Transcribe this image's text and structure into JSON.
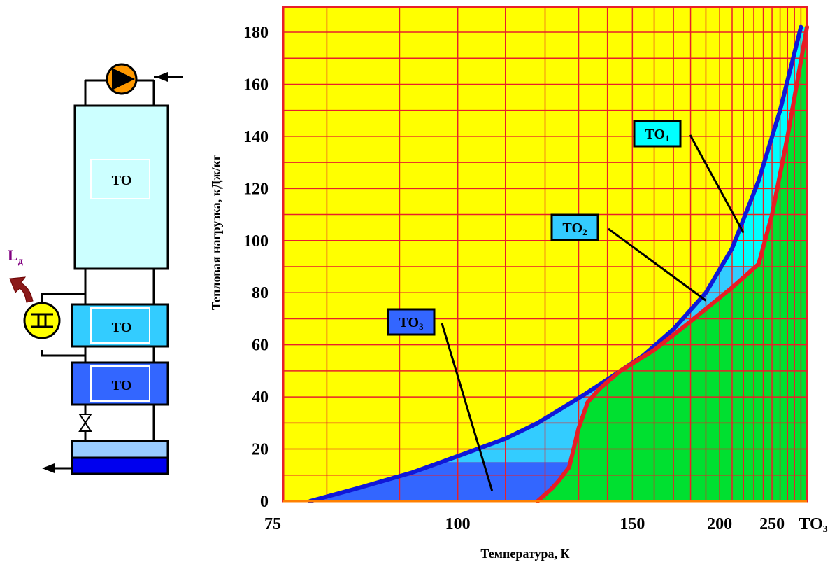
{
  "colors": {
    "background": "#ffff00",
    "grid": "#e8202a",
    "hot_curve": "#1018d8",
    "cold_curve": "#e81c24",
    "region_to1": "#00ffff",
    "region_to2": "#33ccff",
    "region_to3": "#3366ff",
    "region_cold": "#00e030",
    "hx1_fill": "#ccffff",
    "hx2_fill": "#33ccff",
    "hx3_fill": "#3366ff",
    "pump": "#ff9900",
    "expander": "#ffff00",
    "tank_top": "#99ccff",
    "tank_bottom": "#0000ee",
    "work_arrow": "#8b1a1a",
    "work_label": "#800080"
  },
  "diagram": {
    "hx1_label": "ТО",
    "hx2_label": "ТО",
    "hx3_label": "ТО",
    "work_label": "L",
    "work_sub": "д",
    "icons": [
      "pump-icon",
      "expander-icon",
      "valve-icon",
      "tank-icon",
      "work-arrow-icon"
    ]
  },
  "chart_data": {
    "type": "area",
    "title": "",
    "xlabel": "Температура, К",
    "ylabel": "Тепловая нагрузка, кДж/кг",
    "x_scale": "reciprocal",
    "x_tick_labels": [
      "75",
      "100",
      "150",
      "200",
      "250"
    ],
    "x_extra_label": "ТО",
    "x_extra_sub": "3",
    "y_ticks": [
      0,
      20,
      40,
      60,
      80,
      100,
      120,
      140,
      160,
      180
    ],
    "xlim": [
      75,
      300
    ],
    "ylim": [
      0,
      190
    ],
    "grid": true,
    "series": [
      {
        "name": "",
        "role": "hot stream composite curve",
        "x": [
          78,
          84,
          92,
          101,
          110,
          118,
          124,
          132,
          142,
          155,
          170,
          190,
          210,
          235,
          260,
          290
        ],
        "y": [
          0,
          5,
          11,
          18,
          24,
          30,
          35,
          41,
          48,
          56,
          66,
          80,
          97,
          123,
          150,
          182
        ]
      },
      {
        "name": "",
        "role": "cold stream composite curve",
        "x": [
          118,
          122,
          124,
          127,
          128,
          130,
          133,
          137,
          145,
          160,
          180,
          210,
          235,
          250,
          270,
          300
        ],
        "y": [
          0,
          5,
          8,
          13,
          18,
          28,
          38,
          43,
          50,
          58,
          69,
          82,
          91,
          110,
          140,
          182
        ]
      }
    ],
    "annotations": [
      {
        "label": "ТО",
        "sub": "1",
        "target_x": 220,
        "target_y": 103
      },
      {
        "label": "ТО",
        "sub": "2",
        "target_x": 190,
        "target_y": 77
      },
      {
        "label": "ТО",
        "sub": "3",
        "target_x": 107,
        "target_y": 4
      }
    ]
  }
}
